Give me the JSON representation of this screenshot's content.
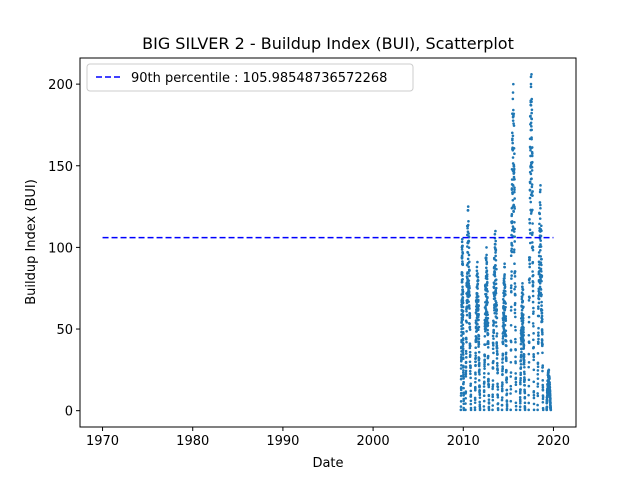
{
  "chart_data": {
    "type": "scatter",
    "title": "BIG SILVER 2 - Buildup Index (BUI), Scatterplot",
    "xlabel": "Date",
    "ylabel": "Buildup Index (BUI)",
    "xlim": [
      1967.5,
      2022.5
    ],
    "ylim": [
      -10,
      216
    ],
    "xticks": [
      "1970",
      "1980",
      "1990",
      "2000",
      "2010",
      "2020"
    ],
    "yticks": [
      "0",
      "50",
      "100",
      "150",
      "200"
    ],
    "grid": false,
    "legend_position": "upper-left",
    "reference_line": {
      "label": "90th percentile : 105.98548736572268",
      "value": 105.98548736572268,
      "x_start": 1970,
      "x_end": 2020,
      "color": "#0000ff",
      "style": "dashed"
    },
    "series": [
      {
        "color": "#1f77b4",
        "seasons": [
          {
            "x_start": 2009.75,
            "x_end": 2010.05,
            "peak": 105
          },
          {
            "x_start": 2010.25,
            "x_end": 2010.85,
            "peak": 125
          },
          {
            "x_start": 2011.3,
            "x_end": 2011.85,
            "peak": 91
          },
          {
            "x_start": 2012.3,
            "x_end": 2012.85,
            "peak": 100
          },
          {
            "x_start": 2013.25,
            "x_end": 2013.85,
            "peak": 110
          },
          {
            "x_start": 2014.3,
            "x_end": 2014.85,
            "peak": 90
          },
          {
            "x_start": 2015.25,
            "x_end": 2015.85,
            "peak": 200
          },
          {
            "x_start": 2016.3,
            "x_end": 2016.85,
            "peak": 78
          },
          {
            "x_start": 2017.25,
            "x_end": 2017.85,
            "peak": 206
          },
          {
            "x_start": 2018.25,
            "x_end": 2018.85,
            "peak": 138
          },
          {
            "x_start": 2019.25,
            "x_end": 2019.7,
            "peak": 25
          }
        ]
      }
    ]
  }
}
